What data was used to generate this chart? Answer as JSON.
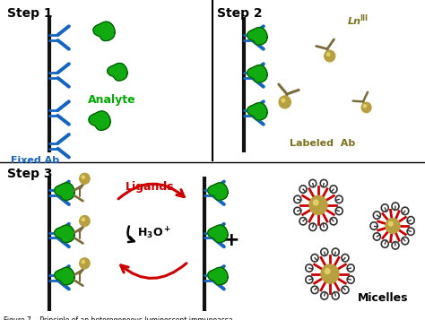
{
  "step1_label": "Step 1",
  "step2_label": "Step 2",
  "step3_label": "Step 3",
  "analyte_label": "Analyte",
  "analyte_color": "#00aa00",
  "fixed_ab_label": "Fixed Ab",
  "fixed_ab_color": "#1565C0",
  "labeled_ab_label": "Labeled  Ab",
  "labeled_ab_color": "#7B6B3A",
  "ln_label": "Ln",
  "ln_superscript": "III",
  "ligands_label": "Ligands",
  "ligands_color": "#CC0000",
  "micelles_label": "Micelles",
  "bg_color": "#FFFFFF",
  "wall_color": "#111111",
  "ab_arm_color": "#1565C0",
  "labeled_particle_color": "#B8A040",
  "micelle_burst_color": "#CC0000",
  "green_analyte": "#11AA11",
  "ab_body_color": "#7B6B3A"
}
